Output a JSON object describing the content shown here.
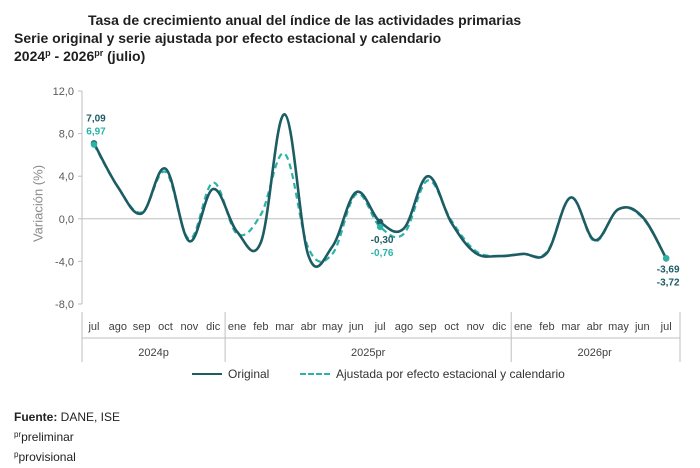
{
  "header": {
    "title_line1": "Tasa de crecimiento anual del índice de las actividades primarias",
    "title_line2": "Serie original y serie ajustada por efecto estacional y calendario",
    "title_line3_a": "2024",
    "title_line3_sup1": "p",
    "title_line3_b": " - 2026",
    "title_line3_sup2": "pr",
    "title_line3_c": " (julio)"
  },
  "chart_data": {
    "type": "line",
    "ylabel": "Variación (%)",
    "ylim": [
      -8,
      12
    ],
    "yticks": [
      "12,0",
      "8,0",
      "4,0",
      "0,0",
      "-4,0",
      "-8,0"
    ],
    "ytick_values": [
      12,
      8,
      4,
      0,
      -4,
      -8
    ],
    "categories": [
      "jul",
      "ago",
      "sep",
      "oct",
      "nov",
      "dic",
      "ene",
      "feb",
      "mar",
      "abr",
      "may",
      "jun",
      "jul",
      "ago",
      "sep",
      "oct",
      "nov",
      "dic",
      "ene",
      "feb",
      "mar",
      "abr",
      "may",
      "jun",
      "jul"
    ],
    "year_groups": [
      {
        "label": "2024p",
        "start": 0,
        "end": 5
      },
      {
        "label": "2025pr",
        "start": 6,
        "end": 17
      },
      {
        "label": "2026pr",
        "start": 18,
        "end": 24
      }
    ],
    "series": [
      {
        "name": "Original",
        "style": "solid",
        "color": "#1d5c63",
        "values": [
          7.09,
          3.0,
          0.5,
          4.7,
          -2.1,
          2.8,
          -1.2,
          -2.2,
          9.8,
          -3.5,
          -2.6,
          2.5,
          -0.3,
          -0.9,
          4.0,
          -0.4,
          -3.2,
          -3.5,
          -3.3,
          -3.2,
          2.0,
          -2.0,
          0.9,
          0.2,
          -3.72
        ]
      },
      {
        "name": "Ajustada por efecto estacional y calendario",
        "style": "dashed",
        "color": "#2bb3a8",
        "values": [
          6.97,
          3.0,
          0.6,
          4.4,
          -1.9,
          3.4,
          -1.4,
          0.4,
          6.1,
          -2.8,
          -3.3,
          2.3,
          -0.76,
          -1.4,
          3.6,
          -0.2,
          -3.0,
          -3.5,
          -3.3,
          -3.1,
          2.0,
          -2.1,
          0.9,
          0.1,
          -3.69
        ]
      }
    ],
    "annotations": [
      {
        "index": 0,
        "text_top": "7,09",
        "text_bottom": "6,97"
      },
      {
        "index": 12,
        "text_top": "-0,30",
        "text_bottom": "-0,76"
      },
      {
        "index": 24,
        "text_top": "-3,69",
        "text_bottom": "-3,72"
      }
    ],
    "grid": false,
    "legend_position": "bottom"
  },
  "legend": {
    "original": "Original",
    "adjusted": "Ajustada por efecto estacional y calendario"
  },
  "notes": {
    "source_label": "Fuente:",
    "source_text": " DANE, ISE",
    "pr_sup": "pr",
    "pr_text": "preliminar",
    "p_sup": "p",
    "p_text": "provisional"
  }
}
